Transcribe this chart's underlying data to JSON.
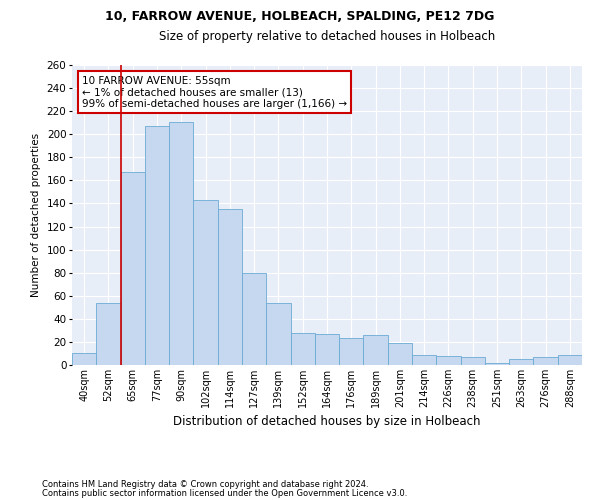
{
  "title1": "10, FARROW AVENUE, HOLBEACH, SPALDING, PE12 7DG",
  "title2": "Size of property relative to detached houses in Holbeach",
  "xlabel": "Distribution of detached houses by size in Holbeach",
  "ylabel": "Number of detached properties",
  "footnote1": "Contains HM Land Registry data © Crown copyright and database right 2024.",
  "footnote2": "Contains public sector information licensed under the Open Government Licence v3.0.",
  "annotation_line1": "10 FARROW AVENUE: 55sqm",
  "annotation_line2": "← 1% of detached houses are smaller (13)",
  "annotation_line3": "99% of semi-detached houses are larger (1,166) →",
  "bar_labels": [
    "40sqm",
    "52sqm",
    "65sqm",
    "77sqm",
    "90sqm",
    "102sqm",
    "114sqm",
    "127sqm",
    "139sqm",
    "152sqm",
    "164sqm",
    "176sqm",
    "189sqm",
    "201sqm",
    "214sqm",
    "226sqm",
    "238sqm",
    "251sqm",
    "263sqm",
    "276sqm",
    "288sqm"
  ],
  "bar_values": [
    10,
    54,
    167,
    207,
    211,
    143,
    135,
    80,
    54,
    28,
    27,
    23,
    26,
    19,
    9,
    8,
    7,
    2,
    5,
    7,
    9
  ],
  "bar_color": "#c5d8f0",
  "bar_edge_color": "#6aaad4",
  "vline_x_index": 1,
  "vline_color": "#cc0000",
  "background_color": "#ffffff",
  "plot_bg_color": "#e8eef8",
  "annotation_box_color": "#ffffff",
  "annotation_box_edge": "#cc0000",
  "ylim": [
    0,
    260
  ],
  "yticks": [
    0,
    20,
    40,
    60,
    80,
    100,
    120,
    140,
    160,
    180,
    200,
    220,
    240,
    260
  ]
}
